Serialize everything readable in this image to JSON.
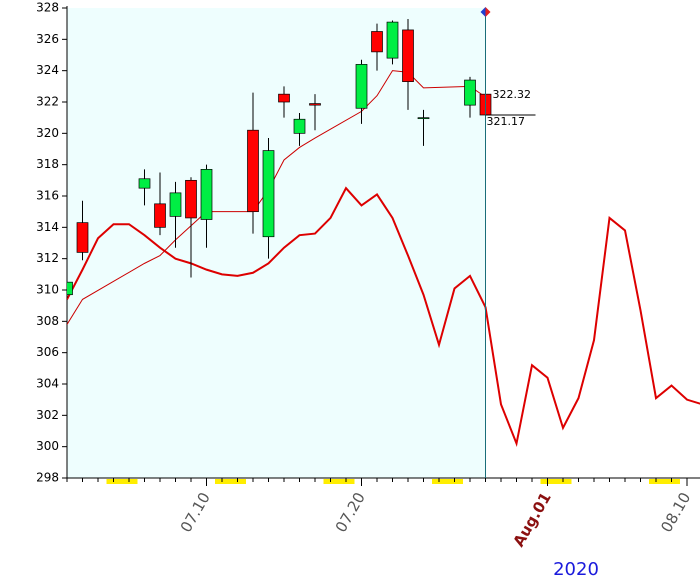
{
  "chart_data": {
    "type": "candlestick",
    "year": "2020",
    "xlim": [
      "07.01",
      "08.11"
    ],
    "xticks": [
      "07.10",
      "07.20",
      {
        "value": "08.01",
        "label": "Aug.01"
      },
      "08.10"
    ],
    "ylim": [
      298,
      328
    ],
    "yticks": [
      298,
      300,
      302,
      304,
      306,
      308,
      310,
      312,
      314,
      316,
      318,
      320,
      322,
      324,
      326,
      328
    ],
    "candles": {
      "up_color": "#00ee44",
      "down_color": "#ff0000",
      "x": [
        "07.01",
        "07.02",
        "07.06",
        "07.07",
        "07.08",
        "07.09",
        "07.10",
        "07.13",
        "07.14",
        "07.15",
        "07.16",
        "07.17",
        "07.20",
        "07.21",
        "07.22",
        "07.23",
        "07.24",
        "07.27",
        "07.28"
      ],
      "open": [
        309.7,
        314.3,
        316.5,
        315.5,
        314.7,
        317.0,
        314.5,
        320.2,
        313.4,
        322.5,
        320.0,
        321.9,
        321.6,
        326.5,
        324.8,
        326.6,
        321.0,
        321.8,
        322.5
      ],
      "high": [
        310.6,
        315.7,
        317.7,
        317.5,
        316.9,
        317.2,
        318.0,
        322.6,
        319.7,
        323.0,
        321.3,
        322.5,
        324.7,
        327.0,
        327.2,
        327.3,
        321.5,
        323.6,
        323.0
      ],
      "low": [
        309.5,
        311.9,
        315.4,
        313.5,
        312.7,
        310.8,
        312.7,
        313.6,
        312.0,
        321.0,
        319.2,
        320.2,
        320.6,
        324.0,
        324.4,
        321.5,
        319.2,
        321.0,
        320.7
      ],
      "close": [
        310.5,
        312.4,
        317.1,
        314.0,
        316.2,
        314.6,
        317.7,
        315.0,
        318.9,
        322.0,
        320.9,
        321.8,
        324.4,
        325.2,
        327.1,
        323.3,
        321.0,
        323.4,
        321.17
      ]
    },
    "ma": {
      "color": "#cc0000",
      "width": 1,
      "values": [
        307.8,
        309.4,
        311.7,
        312.2,
        313.2,
        314.1,
        315.0,
        315.0,
        316.4,
        318.3,
        319.1,
        319.7,
        321.4,
        322.4,
        324.0,
        323.9,
        322.9,
        323.0,
        322.32
      ]
    },
    "forecast": {
      "color": "#dd0000",
      "width": 2,
      "x": [
        "07.01",
        "07.02",
        "07.03",
        "07.04",
        "07.05",
        "07.06",
        "07.07",
        "07.08",
        "07.09",
        "07.10",
        "07.11",
        "07.12",
        "07.13",
        "07.14",
        "07.15",
        "07.16",
        "07.17",
        "07.18",
        "07.19",
        "07.20",
        "07.21",
        "07.22",
        "07.23",
        "07.24",
        "07.25",
        "07.26",
        "07.27",
        "07.28",
        "07.29",
        "07.30",
        "07.31",
        "08.01",
        "08.02",
        "08.03",
        "08.04",
        "08.05",
        "08.06",
        "08.07",
        "08.08",
        "08.09",
        "08.10",
        "08.11"
      ],
      "values": [
        309.4,
        311.3,
        313.3,
        314.2,
        314.2,
        313.5,
        312.7,
        312.0,
        311.7,
        311.3,
        311.0,
        310.9,
        311.1,
        311.7,
        312.7,
        313.5,
        313.6,
        314.6,
        316.5,
        315.4,
        316.1,
        314.6,
        312.2,
        309.7,
        306.5,
        310.1,
        310.9,
        308.9,
        302.7,
        300.2,
        305.2,
        304.4,
        301.2,
        303.1,
        306.8,
        314.6,
        313.8,
        308.7,
        303.1,
        303.9,
        303.0,
        302.7
      ]
    }
  }
}
